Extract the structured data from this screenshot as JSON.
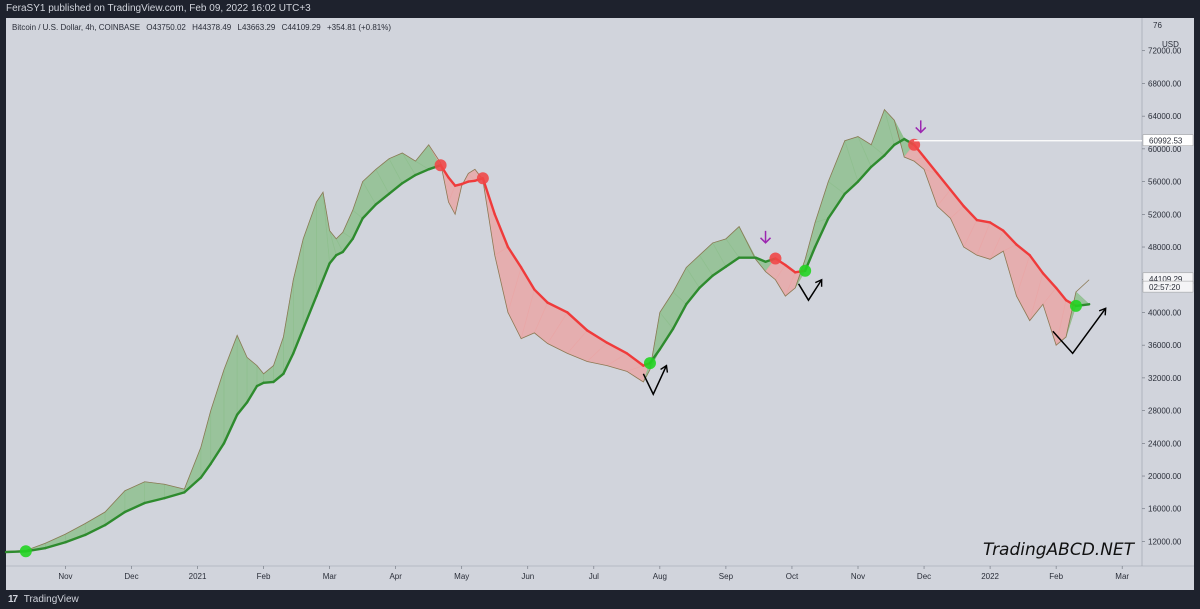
{
  "publisher": "FeraSY1 published on TradingView.com, Feb 09, 2022 16:02 UTC+3",
  "footer": {
    "logo": "17",
    "brand": "TradingView"
  },
  "colors": {
    "panel_bg": "#d1d4dc",
    "up_line": "#2e8b2e",
    "down_line": "#ef3b3b",
    "up_fill": "#8fbf8f",
    "down_fill": "#e9a7a7",
    "up_dot": "#22d422",
    "down_dot": "#f04848",
    "arrow": "#9c27b0"
  },
  "chart_data": {
    "type": "line",
    "title": "Bitcoin / U.S. Dollar, 4h, COINBASE",
    "ohlc": {
      "open": "O43750.02",
      "high": "H44378.49",
      "low": "L43663.29",
      "close": "C44109.29",
      "change": "+354.81 (+0.81%)"
    },
    "currency": "USD",
    "y_ticks": [
      "12000.00",
      "16000.00",
      "20000.00",
      "24000.00",
      "28000.00",
      "32000.00",
      "36000.00",
      "40000.00",
      "44000.00",
      "48000.00",
      "52000.00",
      "56000.00",
      "60000.00",
      "64000.00",
      "68000.00",
      "72000.00"
    ],
    "y_top_tick": "76",
    "ylim": [
      9000,
      76000
    ],
    "x_ticks": [
      {
        "label": "Nov",
        "x": 1.0
      },
      {
        "label": "Dec",
        "x": 2.0
      },
      {
        "label": "2021",
        "x": 3.0
      },
      {
        "label": "Feb",
        "x": 4.0
      },
      {
        "label": "Mar",
        "x": 5.0
      },
      {
        "label": "Apr",
        "x": 6.0
      },
      {
        "label": "May",
        "x": 7.0
      },
      {
        "label": "Jun",
        "x": 8.0
      },
      {
        "label": "Jul",
        "x": 9.0
      },
      {
        "label": "Aug",
        "x": 10.0
      },
      {
        "label": "Sep",
        "x": 11.0
      },
      {
        "label": "Oct",
        "x": 12.0
      },
      {
        "label": "Nov",
        "x": 13.0
      },
      {
        "label": "Dec",
        "x": 14.0
      },
      {
        "label": "2022",
        "x": 15.0
      },
      {
        "label": "Feb",
        "x": 16.0
      },
      {
        "label": "Mar",
        "x": 17.0
      }
    ],
    "xlim": [
      0.1,
      17.3
    ],
    "price_labels": [
      {
        "text": "60992.53",
        "value": 60992.53
      },
      {
        "text": "44109.29",
        "value": 44109.29
      },
      {
        "text": "02:57:20",
        "value": 43100
      }
    ],
    "series": [
      {
        "points": [
          [
            0.1,
            10700
          ],
          [
            0.4,
            10800
          ],
          [
            0.7,
            11200
          ],
          [
            1.0,
            11900
          ],
          [
            1.3,
            12800
          ],
          [
            1.6,
            14000
          ],
          [
            1.9,
            15600
          ],
          [
            2.2,
            16700
          ],
          [
            2.5,
            17300
          ],
          [
            2.8,
            18000
          ],
          [
            3.05,
            19800
          ],
          [
            3.2,
            21500
          ],
          [
            3.4,
            24000
          ],
          [
            3.6,
            27500
          ],
          [
            3.75,
            29000
          ],
          [
            3.9,
            31000
          ],
          [
            4.0,
            31400
          ],
          [
            4.15,
            31500
          ],
          [
            4.3,
            32500
          ],
          [
            4.45,
            35000
          ],
          [
            4.6,
            38000
          ],
          [
            4.8,
            42000
          ],
          [
            5.0,
            46000
          ],
          [
            5.1,
            47000
          ],
          [
            5.2,
            47400
          ],
          [
            5.35,
            49000
          ],
          [
            5.5,
            51500
          ],
          [
            5.7,
            53200
          ],
          [
            5.9,
            54500
          ],
          [
            6.1,
            55800
          ],
          [
            6.3,
            56800
          ],
          [
            6.5,
            57500
          ],
          [
            6.68,
            58000
          ],
          [
            6.8,
            56500
          ],
          [
            6.9,
            55500
          ],
          [
            7.0,
            55700
          ],
          [
            7.1,
            56000
          ],
          [
            7.2,
            56100
          ],
          [
            7.32,
            56400
          ],
          [
            7.5,
            52000
          ],
          [
            7.7,
            48000
          ],
          [
            7.9,
            45500
          ],
          [
            8.1,
            42800
          ],
          [
            8.3,
            41200
          ],
          [
            8.6,
            40000
          ],
          [
            8.9,
            37800
          ],
          [
            9.2,
            36300
          ],
          [
            9.5,
            35000
          ],
          [
            9.75,
            33500
          ],
          [
            9.85,
            33800
          ],
          [
            10.0,
            35500
          ],
          [
            10.2,
            38000
          ],
          [
            10.4,
            41000
          ],
          [
            10.6,
            43000
          ],
          [
            10.8,
            44500
          ],
          [
            11.0,
            45600
          ],
          [
            11.2,
            46700
          ],
          [
            11.45,
            46700
          ],
          [
            11.6,
            46200
          ],
          [
            11.75,
            46600
          ],
          [
            11.9,
            45800
          ],
          [
            12.05,
            44900
          ],
          [
            12.2,
            45100
          ],
          [
            12.35,
            48000
          ],
          [
            12.55,
            51500
          ],
          [
            12.8,
            54500
          ],
          [
            13.0,
            56000
          ],
          [
            13.2,
            57800
          ],
          [
            13.4,
            59200
          ],
          [
            13.55,
            60500
          ],
          [
            13.7,
            61200
          ],
          [
            13.85,
            60500
          ],
          [
            14.0,
            59000
          ],
          [
            14.2,
            57000
          ],
          [
            14.4,
            55000
          ],
          [
            14.6,
            53000
          ],
          [
            14.8,
            51300
          ],
          [
            15.0,
            51000
          ],
          [
            15.2,
            50000
          ],
          [
            15.4,
            48300
          ],
          [
            15.6,
            47000
          ],
          [
            15.8,
            44800
          ],
          [
            16.0,
            43000
          ],
          [
            16.15,
            41500
          ],
          [
            16.3,
            40800
          ],
          [
            16.5,
            41000
          ]
        ]
      },
      {
        "points": [
          [
            0.1,
            10800
          ],
          [
            0.4,
            10900
          ],
          [
            0.7,
            11800
          ],
          [
            1.0,
            12900
          ],
          [
            1.3,
            14200
          ],
          [
            1.6,
            15600
          ],
          [
            1.9,
            18200
          ],
          [
            2.2,
            19300
          ],
          [
            2.5,
            19000
          ],
          [
            2.8,
            18400
          ],
          [
            3.05,
            23500
          ],
          [
            3.2,
            28000
          ],
          [
            3.4,
            33000
          ],
          [
            3.6,
            37200
          ],
          [
            3.75,
            34500
          ],
          [
            3.9,
            33500
          ],
          [
            4.0,
            32500
          ],
          [
            4.15,
            33500
          ],
          [
            4.3,
            37000
          ],
          [
            4.45,
            44000
          ],
          [
            4.6,
            49000
          ],
          [
            4.8,
            53500
          ],
          [
            4.9,
            54700
          ],
          [
            5.0,
            50000
          ],
          [
            5.1,
            49000
          ],
          [
            5.2,
            49800
          ],
          [
            5.35,
            52500
          ],
          [
            5.5,
            56000
          ],
          [
            5.7,
            57500
          ],
          [
            5.9,
            58800
          ],
          [
            6.1,
            59500
          ],
          [
            6.3,
            58500
          ],
          [
            6.5,
            60500
          ],
          [
            6.68,
            58300
          ],
          [
            6.8,
            53500
          ],
          [
            6.9,
            52000
          ],
          [
            7.0,
            55500
          ],
          [
            7.1,
            57000
          ],
          [
            7.2,
            57500
          ],
          [
            7.32,
            56200
          ],
          [
            7.5,
            47000
          ],
          [
            7.7,
            40000
          ],
          [
            7.9,
            36800
          ],
          [
            8.1,
            37500
          ],
          [
            8.3,
            36200
          ],
          [
            8.6,
            35000
          ],
          [
            8.9,
            34000
          ],
          [
            9.2,
            33500
          ],
          [
            9.5,
            32800
          ],
          [
            9.75,
            31500
          ],
          [
            9.85,
            33000
          ],
          [
            10.0,
            40000
          ],
          [
            10.2,
            42500
          ],
          [
            10.4,
            45500
          ],
          [
            10.6,
            47000
          ],
          [
            10.8,
            48500
          ],
          [
            11.0,
            49000
          ],
          [
            11.2,
            50500
          ],
          [
            11.45,
            46500
          ],
          [
            11.6,
            45000
          ],
          [
            11.75,
            44000
          ],
          [
            11.9,
            42000
          ],
          [
            12.05,
            43000
          ],
          [
            12.2,
            46500
          ],
          [
            12.35,
            51000
          ],
          [
            12.55,
            56000
          ],
          [
            12.8,
            61000
          ],
          [
            13.0,
            61500
          ],
          [
            13.2,
            60500
          ],
          [
            13.4,
            64800
          ],
          [
            13.55,
            63500
          ],
          [
            13.7,
            59000
          ],
          [
            13.85,
            58500
          ],
          [
            14.0,
            57500
          ],
          [
            14.2,
            53000
          ],
          [
            14.4,
            51500
          ],
          [
            14.6,
            48000
          ],
          [
            14.8,
            47000
          ],
          [
            15.0,
            46500
          ],
          [
            15.2,
            47500
          ],
          [
            15.4,
            42000
          ],
          [
            15.6,
            39000
          ],
          [
            15.8,
            41000
          ],
          [
            16.0,
            36000
          ],
          [
            16.15,
            37000
          ],
          [
            16.3,
            42500
          ],
          [
            16.5,
            44000
          ]
        ]
      }
    ],
    "signals": [
      {
        "type": "up",
        "x": 0.4,
        "y": 10800
      },
      {
        "type": "down",
        "x": 6.68,
        "y": 58000
      },
      {
        "type": "down",
        "x": 7.32,
        "y": 56400
      },
      {
        "type": "up",
        "x": 9.85,
        "y": 33800
      },
      {
        "type": "down",
        "x": 11.75,
        "y": 46600
      },
      {
        "type": "up",
        "x": 12.2,
        "y": 45100
      },
      {
        "type": "down",
        "x": 13.85,
        "y": 60500
      },
      {
        "type": "up",
        "x": 16.3,
        "y": 40800
      }
    ],
    "down_arrows": [
      {
        "x": 11.6,
        "y": 49000
      },
      {
        "x": 13.95,
        "y": 62500
      }
    ],
    "check_marks": [
      {
        "points": [
          [
            9.75,
            32500
          ],
          [
            9.9,
            30000
          ],
          [
            10.1,
            33500
          ]
        ]
      },
      {
        "points": [
          [
            12.1,
            43500
          ],
          [
            12.25,
            41500
          ],
          [
            12.45,
            44000
          ]
        ]
      },
      {
        "points": [
          [
            15.95,
            37700
          ],
          [
            16.25,
            35000
          ],
          [
            16.75,
            40500
          ]
        ]
      }
    ],
    "annotations": [
      {
        "text": "TradingABCD.NET"
      }
    ]
  }
}
